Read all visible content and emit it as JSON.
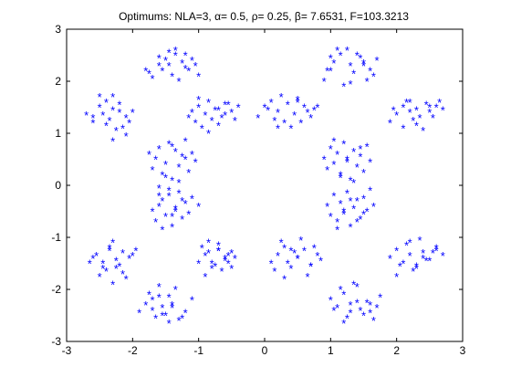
{
  "figure": {
    "background": "#ffffff"
  },
  "chart_data": {
    "type": "scatter",
    "title": "Optimums: NLA=3, α= 0.5, ρ= 0.25, β= 7.6531, F=103.3213",
    "xlabel": "",
    "ylabel": "",
    "xlim": [
      -3,
      3
    ],
    "ylim": [
      -3,
      3
    ],
    "xticks": [
      -3,
      -2,
      -1,
      0,
      1,
      2,
      3
    ],
    "yticks": [
      -3,
      -2,
      -1,
      0,
      1,
      2,
      3
    ],
    "xtick_labels": [
      "-3",
      "-2",
      "-1",
      "0",
      "1",
      "2",
      "3"
    ],
    "ytick_labels": [
      "-3",
      "-2",
      "-1",
      "0",
      "1",
      "2",
      "3"
    ],
    "grid": false,
    "legend": "none",
    "marker": "*",
    "color": "#0000ff",
    "series": [
      {
        "x": [
          -2.6,
          -2.5,
          -2.4,
          -2.3,
          -2.2,
          -2.1,
          -2.05,
          -2.6,
          -2.45,
          -2.3,
          -2.2,
          -2.15,
          -2.5,
          -2.35,
          -2.25,
          -2.1,
          -2.7,
          -2.4,
          -2.3,
          -2.0,
          -1.75,
          -1.6,
          -1.5,
          -1.45,
          -1.35,
          -1.25,
          -1.2,
          -1.1,
          -1.05,
          -1.7,
          -1.55,
          -1.4,
          -1.3,
          -1.15,
          -1.6,
          -1.45,
          -1.35,
          -1.2,
          -1.8,
          -1.0,
          -1.1,
          -1.0,
          -0.9,
          -0.85,
          -0.75,
          -0.65,
          -0.6,
          -0.5,
          -0.45,
          -1.05,
          -0.95,
          -0.8,
          -0.7,
          -0.55,
          -1.0,
          -0.85,
          -0.7,
          -0.6,
          -0.4,
          -1.15,
          -0.1,
          0.0,
          0.1,
          0.2,
          0.3,
          0.35,
          0.45,
          0.5,
          0.6,
          0.7,
          0.75,
          0.05,
          0.15,
          0.25,
          0.4,
          0.55,
          0.65,
          0.2,
          0.5,
          0.8,
          0.9,
          1.0,
          1.05,
          1.15,
          1.25,
          1.3,
          1.35,
          1.45,
          1.5,
          1.55,
          1.6,
          1.7,
          1.0,
          1.2,
          1.4,
          1.65,
          0.95,
          1.1,
          1.3,
          1.5,
          1.9,
          2.0,
          2.1,
          2.2,
          2.3,
          2.35,
          2.45,
          2.5,
          2.6,
          2.65,
          2.1,
          2.25,
          2.4,
          2.55,
          1.95,
          2.15,
          2.3,
          2.5,
          2.7,
          2.2,
          -1.75,
          -1.7,
          -1.65,
          -1.6,
          -1.55,
          -1.5,
          -1.45,
          -1.4,
          -1.35,
          -1.3,
          -1.25,
          -1.2,
          -1.15,
          -1.1,
          -1.05,
          -1.6,
          -1.5,
          -1.4,
          -1.3,
          -1.2,
          -1.7,
          -1.65,
          -1.6,
          -1.55,
          -1.5,
          -1.45,
          -1.4,
          -1.35,
          -1.3,
          -1.25,
          -1.2,
          -1.15,
          -1.1,
          -1.0,
          -1.55,
          -1.45,
          -1.35,
          -1.25,
          -1.6,
          -1.4,
          0.9,
          0.95,
          1.0,
          1.05,
          1.1,
          1.15,
          1.2,
          1.25,
          1.3,
          1.35,
          1.4,
          1.45,
          1.5,
          1.55,
          1.6,
          1.05,
          1.15,
          1.25,
          1.35,
          1.45,
          0.95,
          1.0,
          1.05,
          1.1,
          1.15,
          1.2,
          1.25,
          1.3,
          1.35,
          1.4,
          1.45,
          1.5,
          1.55,
          1.6,
          1.65,
          1.1,
          1.2,
          1.3,
          1.4,
          1.5,
          -2.65,
          -2.55,
          -2.45,
          -2.35,
          -2.25,
          -2.15,
          -2.05,
          -1.95,
          -2.5,
          -2.4,
          -2.3,
          -2.2,
          -2.1,
          -2.6,
          -2.45,
          -2.3,
          -2.15,
          -2.0,
          -2.35,
          -2.25,
          -1.9,
          -1.8,
          -1.7,
          -1.6,
          -1.5,
          -1.4,
          -1.3,
          -1.2,
          -1.1,
          -1.75,
          -1.65,
          -1.55,
          -1.45,
          -1.35,
          -1.7,
          -1.55,
          -1.4,
          -1.25,
          -1.6,
          -1.45,
          -1.0,
          -0.9,
          -0.8,
          -0.7,
          -0.6,
          -0.5,
          -0.45,
          -0.95,
          -0.85,
          -0.75,
          -0.65,
          -0.55,
          -0.9,
          -0.8,
          -0.7,
          -0.6,
          -0.5,
          -0.85,
          -0.7,
          -0.55,
          0.1,
          0.2,
          0.3,
          0.4,
          0.5,
          0.6,
          0.7,
          0.8,
          0.85,
          0.15,
          0.25,
          0.35,
          0.45,
          0.55,
          0.65,
          0.75,
          0.3,
          0.5,
          0.7,
          0.4,
          1.0,
          1.1,
          1.2,
          1.3,
          1.4,
          1.5,
          1.6,
          1.65,
          1.75,
          1.05,
          1.15,
          1.25,
          1.35,
          1.45,
          1.55,
          1.7,
          1.2,
          1.4,
          1.6,
          1.3,
          1.9,
          2.0,
          2.1,
          2.2,
          2.3,
          2.4,
          2.5,
          2.6,
          2.7,
          2.05,
          2.15,
          2.25,
          2.35,
          2.45,
          2.55,
          2.0,
          2.2,
          2.4,
          2.6,
          2.3
        ],
        "y": [
          1.3,
          1.5,
          1.6,
          1.7,
          1.4,
          1.3,
          1.2,
          1.2,
          1.35,
          1.45,
          1.55,
          1.1,
          1.7,
          1.25,
          1.05,
          0.95,
          1.35,
          1.15,
          0.85,
          1.4,
          2.15,
          2.3,
          2.4,
          2.55,
          2.5,
          2.35,
          2.25,
          2.4,
          2.3,
          2.05,
          2.2,
          2.1,
          2.0,
          2.2,
          2.45,
          2.3,
          2.6,
          2.5,
          2.2,
          2.1,
          1.4,
          1.5,
          1.35,
          1.6,
          1.45,
          1.3,
          1.55,
          1.4,
          1.25,
          1.2,
          1.1,
          1.25,
          1.45,
          1.55,
          1.65,
          1.0,
          1.15,
          1.35,
          1.5,
          1.3,
          1.3,
          1.5,
          1.6,
          1.4,
          1.2,
          1.55,
          1.35,
          1.65,
          1.5,
          1.3,
          1.45,
          1.45,
          1.25,
          1.7,
          1.1,
          1.2,
          1.4,
          1.1,
          1.6,
          1.5,
          2.0,
          2.2,
          2.35,
          2.5,
          2.6,
          2.3,
          2.15,
          2.45,
          2.3,
          2.0,
          2.2,
          2.4,
          2.45,
          1.9,
          2.5,
          2.1,
          2.2,
          2.6,
          1.95,
          2.35,
          1.2,
          1.35,
          1.5,
          1.6,
          1.45,
          1.3,
          1.55,
          1.4,
          1.5,
          1.6,
          1.1,
          1.25,
          1.05,
          1.3,
          1.45,
          1.6,
          1.15,
          1.5,
          1.45,
          1.4,
          0.6,
          0.3,
          0.5,
          0.7,
          0.2,
          0.4,
          0.8,
          0.1,
          0.65,
          0.35,
          0.55,
          0.85,
          0.25,
          0.6,
          0.45,
          -0.05,
          0.15,
          0.75,
          0.05,
          0.5,
          -0.5,
          -0.7,
          -0.4,
          -0.3,
          -0.6,
          -0.2,
          -0.8,
          -0.45,
          -0.15,
          -0.65,
          -0.35,
          -0.55,
          -0.25,
          -0.4,
          -0.85,
          -0.1,
          -0.5,
          -0.3,
          -0.2,
          -0.6,
          0.5,
          0.3,
          0.7,
          0.4,
          0.6,
          0.2,
          0.8,
          0.45,
          0.1,
          0.65,
          0.35,
          0.55,
          0.25,
          0.75,
          0.45,
          0.85,
          0.15,
          0.5,
          0.05,
          0.7,
          -0.4,
          -0.6,
          -0.2,
          -0.7,
          -0.35,
          -0.55,
          -0.15,
          -0.8,
          -0.45,
          -0.3,
          -0.65,
          -0.25,
          -0.5,
          -0.1,
          -0.4,
          -0.85,
          -0.5,
          -0.3,
          -0.7,
          -0.55,
          -1.5,
          -1.35,
          -1.6,
          -1.2,
          -1.45,
          -1.3,
          -1.4,
          -1.25,
          -1.75,
          -1.65,
          -1.1,
          -1.55,
          -1.8,
          -1.4,
          -1.5,
          -1.9,
          -1.7,
          -1.35,
          -1.25,
          -1.6,
          -2.45,
          -2.3,
          -2.4,
          -2.15,
          -2.5,
          -2.3,
          -2.6,
          -2.45,
          -2.2,
          -2.1,
          -2.55,
          -2.35,
          -2.65,
          -2.0,
          -2.2,
          -2.5,
          -2.35,
          -2.55,
          -1.95,
          -2.15,
          -1.5,
          -1.35,
          -1.6,
          -1.25,
          -1.45,
          -1.3,
          -1.4,
          -1.2,
          -1.1,
          -1.55,
          -1.65,
          -1.35,
          -1.75,
          -1.5,
          -1.25,
          -1.4,
          -1.6,
          -1.3,
          -1.15,
          -1.5,
          -1.5,
          -1.35,
          -1.2,
          -1.6,
          -1.4,
          -1.25,
          -1.55,
          -1.35,
          -1.45,
          -1.65,
          -1.1,
          -1.5,
          -1.3,
          -1.05,
          -1.75,
          -1.2,
          -1.8,
          -1.4,
          -1.55,
          -1.25,
          -2.2,
          -2.35,
          -2.1,
          -2.45,
          -2.25,
          -2.5,
          -2.3,
          -2.6,
          -2.15,
          -2.4,
          -2.0,
          -2.55,
          -1.9,
          -2.4,
          -2.25,
          -2.35,
          -2.65,
          -1.95,
          -2.45,
          -2.3,
          -1.4,
          -1.25,
          -1.5,
          -1.35,
          -1.6,
          -1.3,
          -1.45,
          -1.2,
          -1.35,
          -1.55,
          -1.15,
          -1.65,
          -1.05,
          -1.45,
          -1.3,
          -1.75,
          -1.1,
          -1.4,
          -1.25,
          -1.55
        ]
      }
    ]
  }
}
